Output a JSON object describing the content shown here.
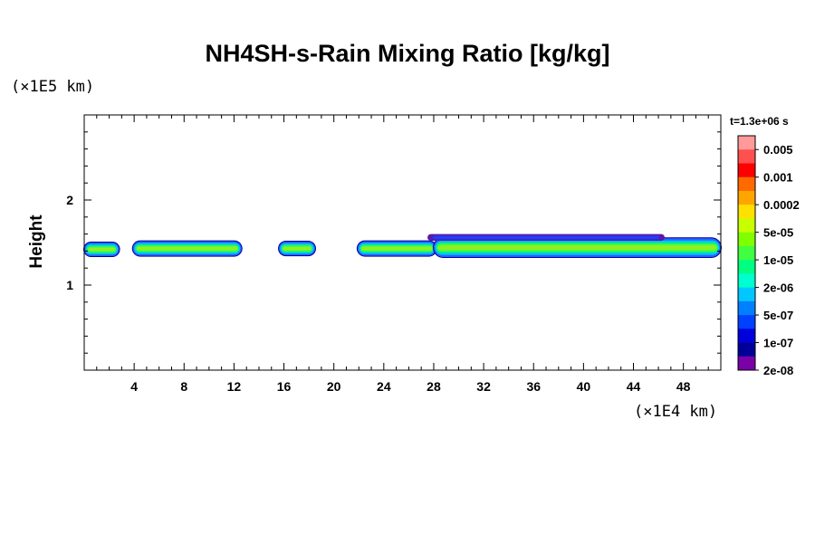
{
  "chart_data": {
    "type": "heatmap",
    "title": "NH4SH-s-Rain Mixing Ratio [kg/kg]",
    "xlabel": "",
    "ylabel": "Height",
    "x_unit": "(×1E4 km)",
    "y_unit": "(×1E5 km)",
    "xlim": [
      0,
      51
    ],
    "ylim": [
      0,
      3
    ],
    "x_ticks": [
      4,
      8,
      12,
      16,
      20,
      24,
      28,
      32,
      36,
      40,
      44,
      48
    ],
    "y_ticks": [
      1,
      2
    ],
    "time_label": "t=1.3e+06 s",
    "colorbar": {
      "labels": [
        "0.005",
        "0.001",
        "0.0002",
        "5e-05",
        "1e-05",
        "2e-06",
        "5e-07",
        "1e-07",
        "2e-08"
      ],
      "colors": [
        "#ff9a9a",
        "#ff5050",
        "#ff0000",
        "#ff6a00",
        "#ffa500",
        "#ffe000",
        "#c8ff00",
        "#80ff00",
        "#40ff40",
        "#00ff80",
        "#00ffd0",
        "#00c8ff",
        "#0080ff",
        "#0040ff",
        "#0000dd",
        "#000099",
        "#7a00a8"
      ]
    },
    "bands": [
      {
        "x0": 0.0,
        "x1": 2.8,
        "y_center": 1.42,
        "thickness": 0.16,
        "level": "1e-05"
      },
      {
        "x0": 3.9,
        "x1": 12.6,
        "y_center": 1.43,
        "thickness": 0.17,
        "level": "1e-05"
      },
      {
        "x0": 15.6,
        "x1": 18.5,
        "y_center": 1.43,
        "thickness": 0.16,
        "level": "1e-05"
      },
      {
        "x0": 21.9,
        "x1": 28.2,
        "y_center": 1.43,
        "thickness": 0.17,
        "level": "1e-05"
      },
      {
        "x0": 28.0,
        "x1": 51.0,
        "y_center": 1.44,
        "thickness": 0.22,
        "level": "1e-05"
      },
      {
        "x0": 27.5,
        "x1": 46.5,
        "y_center": 1.56,
        "thickness": 0.08,
        "level": "2e-08"
      }
    ]
  }
}
